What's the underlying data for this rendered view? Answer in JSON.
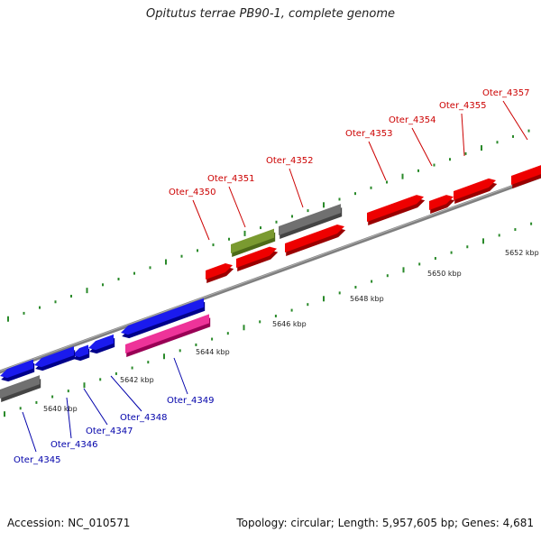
{
  "title": "Opitutus terrae PB90-1, complete genome",
  "footer": {
    "accession": "Accession: NC_010571",
    "summary": "Topology: circular; Length: 5,957,605 bp; Genes: 4,681"
  },
  "colors": {
    "label_red": "#cc0000",
    "label_blue": "#0000aa",
    "backbone": "#808080",
    "tick": "#2a8a2a"
  },
  "scale_labels": [
    "5640 kbp",
    "5642 kbp",
    "5644 kbp",
    "5646 kbp",
    "5648 kbp",
    "5650 kbp",
    "5652 kbp"
  ],
  "genes": [
    {
      "name": "Oter_4345"
    },
    {
      "name": "Oter_4346"
    },
    {
      "name": "Oter_4347"
    },
    {
      "name": "Oter_4348"
    },
    {
      "name": "Oter_4349"
    },
    {
      "name": "Oter_4350"
    },
    {
      "name": "Oter_4351"
    },
    {
      "name": "Oter_4352"
    },
    {
      "name": "Oter_4353"
    },
    {
      "name": "Oter_4354"
    },
    {
      "name": "Oter_4355"
    },
    {
      "name": "Oter_4357"
    }
  ]
}
